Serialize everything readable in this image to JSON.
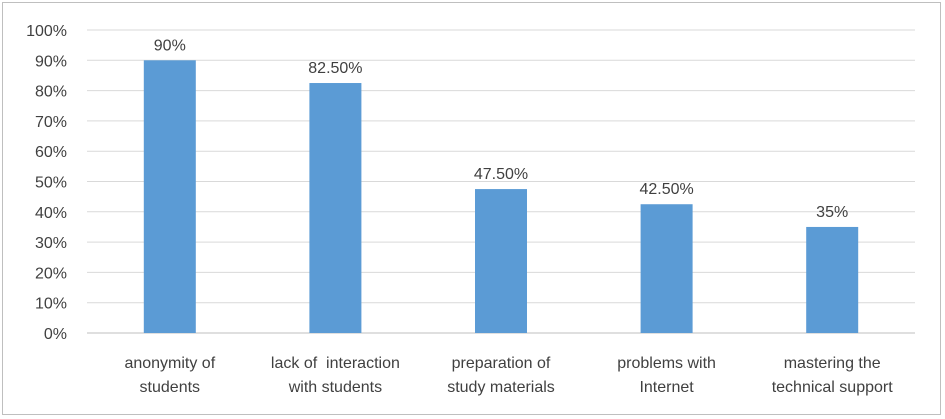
{
  "chart_data": {
    "type": "bar",
    "categories": [
      [
        "anonymity of",
        "students"
      ],
      [
        "lack of  interaction",
        "with students"
      ],
      [
        "preparation of",
        "study materials"
      ],
      [
        "problems with",
        "Internet"
      ],
      [
        "mastering the",
        "technical support"
      ]
    ],
    "values": [
      90,
      82.5,
      47.5,
      42.5,
      35
    ],
    "data_labels": [
      "90%",
      "82.50%",
      "47.50%",
      "42.50%",
      "35%"
    ],
    "ylim": [
      0,
      100
    ],
    "yticks": [
      "0%",
      "10%",
      "20%",
      "30%",
      "40%",
      "50%",
      "60%",
      "70%",
      "80%",
      "90%",
      "100%"
    ],
    "grid": true,
    "bar_color": "#5b9bd5",
    "grid_color": "#d9d9d9",
    "title": "",
    "xlabel": "",
    "ylabel": ""
  }
}
